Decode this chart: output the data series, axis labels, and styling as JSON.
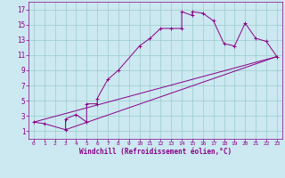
{
  "xlabel": "Windchill (Refroidissement éolien,°C)",
  "bg_color": "#cce8f0",
  "line_color": "#880088",
  "grid_color": "#99cccc",
  "xlim": [
    -0.5,
    23.5
  ],
  "ylim": [
    0,
    18
  ],
  "xticks": [
    0,
    1,
    2,
    3,
    4,
    5,
    6,
    7,
    8,
    9,
    10,
    11,
    12,
    13,
    14,
    15,
    16,
    17,
    18,
    19,
    20,
    21,
    22,
    23
  ],
  "yticks": [
    1,
    3,
    5,
    7,
    9,
    11,
    13,
    15,
    17
  ],
  "curve1_x": [
    0,
    1,
    3,
    3,
    4,
    5,
    5,
    6,
    6,
    7,
    8,
    10,
    11,
    12,
    13,
    14,
    14,
    15,
    15,
    16,
    17,
    18,
    19,
    20,
    21,
    22,
    23
  ],
  "curve1_y": [
    2.2,
    2.0,
    1.2,
    2.6,
    3.2,
    2.2,
    4.6,
    4.6,
    5.3,
    7.8,
    9.0,
    12.2,
    13.2,
    14.5,
    14.5,
    14.5,
    16.7,
    16.2,
    16.7,
    16.5,
    15.5,
    12.5,
    12.2,
    15.2,
    13.2,
    12.8,
    10.8
  ],
  "line1_x": [
    0,
    23
  ],
  "line1_y": [
    2.2,
    10.8
  ],
  "line2_x": [
    3,
    23
  ],
  "line2_y": [
    1.2,
    10.8
  ]
}
